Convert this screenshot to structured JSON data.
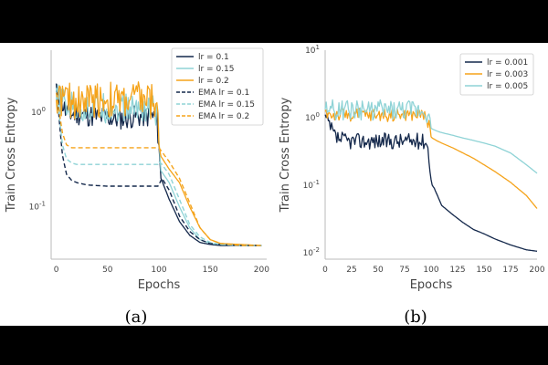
{
  "chart_data": [
    {
      "panel": "a",
      "caption": "(a)",
      "type": "line",
      "xlabel": "Epochs",
      "ylabel": "Train Cross Entropy",
      "yscale": "log",
      "xlim": [
        -5,
        205
      ],
      "ylim": [
        0.028,
        4.5
      ],
      "xticks": [
        0,
        50,
        100,
        150,
        200
      ],
      "xtick_labels": [
        "0",
        "50",
        "100",
        "150",
        "200"
      ],
      "yticks": [
        1,
        0.1
      ],
      "ytick_labels": [
        "10^0",
        "10^-1"
      ],
      "legend": {
        "position": "top-right"
      },
      "series": [
        {
          "name": "lr = 0.1",
          "color": "#14284b",
          "style": "solid",
          "noisy": true,
          "noise": 0.12,
          "x": [
            0,
            2,
            5,
            10,
            20,
            40,
            60,
            80,
            95,
            98,
            100,
            102,
            110,
            120,
            130,
            140,
            150,
            160,
            180,
            200
          ],
          "y": [
            1.5,
            1.6,
            1.3,
            0.95,
            0.95,
            0.9,
            0.85,
            0.9,
            0.9,
            0.8,
            0.45,
            0.2,
            0.12,
            0.07,
            0.05,
            0.042,
            0.04,
            0.039,
            0.039,
            0.039
          ]
        },
        {
          "name": "lr = 0.15",
          "color": "#8fd3d6",
          "style": "solid",
          "noisy": true,
          "noise": 0.16,
          "x": [
            0,
            2,
            5,
            10,
            20,
            40,
            60,
            80,
            95,
            98,
            100,
            102,
            110,
            120,
            130,
            140,
            150,
            160,
            180,
            200
          ],
          "y": [
            1.3,
            1.4,
            1.3,
            1.15,
            1.1,
            1.1,
            1.1,
            1.1,
            1.1,
            1.0,
            0.5,
            0.24,
            0.18,
            0.1,
            0.06,
            0.045,
            0.041,
            0.04,
            0.039,
            0.039
          ]
        },
        {
          "name": "lr = 0.2",
          "color": "#f5a31a",
          "style": "solid",
          "noisy": true,
          "noise": 0.2,
          "x": [
            0,
            2,
            5,
            10,
            20,
            40,
            60,
            80,
            95,
            98,
            100,
            102,
            110,
            120,
            130,
            140,
            150,
            160,
            180,
            200
          ],
          "y": [
            1.5,
            1.4,
            1.4,
            1.3,
            1.3,
            1.4,
            1.3,
            1.4,
            1.3,
            1.2,
            0.45,
            0.34,
            0.25,
            0.18,
            0.1,
            0.06,
            0.045,
            0.041,
            0.04,
            0.039
          ]
        },
        {
          "name": "EMA lr = 0.1",
          "color": "#14284b",
          "style": "dashed",
          "noisy": false,
          "x": [
            0,
            3,
            6,
            10,
            15,
            20,
            30,
            50,
            70,
            90,
            99,
            100,
            103,
            110,
            120,
            130,
            140,
            150,
            160,
            180,
            200
          ],
          "y": [
            2.0,
            0.8,
            0.35,
            0.22,
            0.19,
            0.18,
            0.17,
            0.165,
            0.165,
            0.165,
            0.165,
            0.17,
            0.2,
            0.15,
            0.08,
            0.055,
            0.045,
            0.041,
            0.04,
            0.039,
            0.039
          ]
        },
        {
          "name": "EMA lr = 0.15",
          "color": "#8fd3d6",
          "style": "dashed",
          "noisy": false,
          "x": [
            0,
            3,
            6,
            10,
            15,
            20,
            30,
            50,
            70,
            90,
            99,
            100,
            103,
            110,
            120,
            130,
            140,
            150,
            160,
            180,
            200
          ],
          "y": [
            1.8,
            0.9,
            0.45,
            0.32,
            0.29,
            0.28,
            0.28,
            0.28,
            0.28,
            0.28,
            0.28,
            0.3,
            0.28,
            0.22,
            0.12,
            0.065,
            0.048,
            0.042,
            0.04,
            0.039,
            0.039
          ]
        },
        {
          "name": "EMA lr = 0.2",
          "color": "#f5a31a",
          "style": "dashed",
          "noisy": false,
          "x": [
            0,
            3,
            6,
            10,
            15,
            20,
            30,
            50,
            70,
            90,
            99,
            100,
            103,
            110,
            120,
            130,
            140,
            150,
            160,
            180,
            200
          ],
          "y": [
            1.6,
            1.0,
            0.6,
            0.45,
            0.42,
            0.42,
            0.42,
            0.42,
            0.42,
            0.42,
            0.42,
            0.42,
            0.38,
            0.3,
            0.2,
            0.11,
            0.06,
            0.045,
            0.041,
            0.039,
            0.039
          ]
        }
      ]
    },
    {
      "panel": "b",
      "caption": "(b)",
      "type": "line",
      "xlabel": "Epochs",
      "ylabel": "Train Cross Entropy",
      "yscale": "log",
      "xlim": [
        0,
        200
      ],
      "ylim": [
        0.008,
        10
      ],
      "xticks": [
        0,
        25,
        50,
        75,
        100,
        125,
        150,
        175,
        200
      ],
      "xtick_labels": [
        "0",
        "25",
        "50",
        "75",
        "100",
        "125",
        "150",
        "175",
        "200"
      ],
      "yticks": [
        10,
        1,
        0.1,
        0.01
      ],
      "ytick_labels": [
        "10^1",
        "10^0",
        "10^-1",
        "10^-2"
      ],
      "legend": {
        "position": "top-right"
      },
      "series": [
        {
          "name": "lr = 0.001",
          "color": "#14284b",
          "style": "solid",
          "noisy": true,
          "noise": 0.12,
          "x": [
            0,
            5,
            10,
            20,
            40,
            60,
            80,
            95,
            97,
            99,
            100,
            101,
            103,
            106,
            110,
            120,
            130,
            140,
            150,
            160,
            175,
            190,
            200
          ],
          "y": [
            1.0,
            0.7,
            0.5,
            0.45,
            0.45,
            0.45,
            0.45,
            0.45,
            0.35,
            0.2,
            0.12,
            0.1,
            0.09,
            0.07,
            0.05,
            0.037,
            0.028,
            0.022,
            0.019,
            0.016,
            0.013,
            0.011,
            0.0105
          ]
        },
        {
          "name": "lr = 0.003",
          "color": "#f5a31a",
          "style": "solid",
          "noisy": true,
          "noise": 0.1,
          "x": [
            0,
            5,
            10,
            20,
            40,
            60,
            80,
            95,
            97,
            99,
            100,
            101,
            103,
            106,
            110,
            120,
            130,
            140,
            150,
            160,
            175,
            190,
            200
          ],
          "y": [
            1.2,
            1.1,
            1.1,
            1.1,
            1.1,
            1.1,
            1.1,
            1.1,
            0.9,
            0.6,
            0.52,
            0.5,
            0.48,
            0.45,
            0.42,
            0.36,
            0.3,
            0.25,
            0.2,
            0.16,
            0.11,
            0.07,
            0.045
          ]
        },
        {
          "name": "lr = 0.005",
          "color": "#8fd3d6",
          "style": "solid",
          "noisy": true,
          "noise": 0.15,
          "x": [
            0,
            5,
            10,
            20,
            40,
            60,
            80,
            95,
            97,
            99,
            100,
            101,
            103,
            106,
            110,
            120,
            130,
            140,
            150,
            160,
            175,
            190,
            200
          ],
          "y": [
            1.4,
            1.3,
            1.3,
            1.3,
            1.3,
            1.3,
            1.3,
            1.3,
            1.1,
            0.8,
            0.7,
            0.68,
            0.66,
            0.63,
            0.6,
            0.55,
            0.5,
            0.46,
            0.42,
            0.38,
            0.3,
            0.2,
            0.15
          ]
        }
      ]
    }
  ]
}
